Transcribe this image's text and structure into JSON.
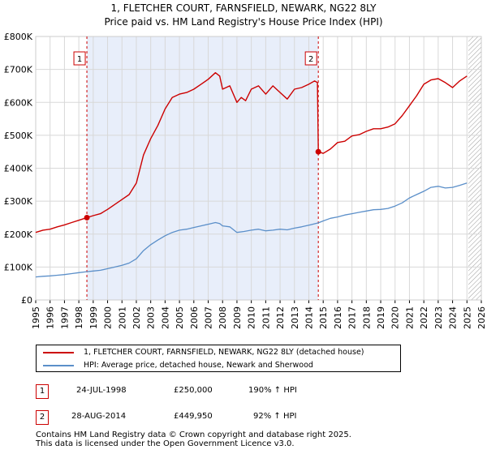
{
  "chart_data": {
    "type": "line",
    "title": "1, FLETCHER COURT, FARNSFIELD, NEWARK, NG22 8LY",
    "subtitle": "Price paid vs. HM Land Registry's House Price Index (HPI)",
    "xlabel": "",
    "ylabel": "",
    "xlim": [
      1995,
      2026
    ],
    "ylim": [
      0,
      800000
    ],
    "yticks": [
      0,
      100000,
      200000,
      300000,
      400000,
      500000,
      600000,
      700000,
      800000
    ],
    "ytick_labels": [
      "£0",
      "£100K",
      "£200K",
      "£300K",
      "£400K",
      "£500K",
      "£600K",
      "£700K",
      "£800K"
    ],
    "xticks": [
      1995,
      1996,
      1997,
      1998,
      1999,
      2000,
      2001,
      2002,
      2003,
      2004,
      2005,
      2006,
      2007,
      2008,
      2009,
      2010,
      2011,
      2012,
      2013,
      2014,
      2015,
      2016,
      2017,
      2018,
      2019,
      2020,
      2021,
      2022,
      2023,
      2024,
      2025,
      2026
    ],
    "xtick_labels": [
      "1995",
      "1996",
      "1997",
      "1998",
      "1999",
      "2000",
      "2001",
      "2002",
      "2003",
      "2004",
      "2005",
      "2006",
      "2007",
      "2008",
      "2009",
      "2010",
      "2011",
      "2012",
      "2013",
      "2014",
      "2015",
      "2016",
      "2017",
      "2018",
      "2019",
      "2020",
      "2021",
      "2022",
      "2023",
      "2024",
      "2025",
      "2026"
    ],
    "grid": true,
    "shaded_region": [
      1998.56,
      2014.66
    ],
    "future_hatch_from": 2025.1,
    "series": [
      {
        "name": "1, FLETCHER COURT, FARNSFIELD, NEWARK, NG22 8LY (detached house)",
        "color": "#cc0000",
        "x": [
          1995.0,
          1995.5,
          1996.0,
          1996.5,
          1997.0,
          1997.5,
          1998.0,
          1998.56,
          1999.0,
          1999.5,
          2000.0,
          2000.5,
          2001.0,
          2001.5,
          2002.0,
          2002.5,
          2003.0,
          2003.5,
          2004.0,
          2004.5,
          2005.0,
          2005.5,
          2006.0,
          2006.5,
          2007.0,
          2007.5,
          2007.8,
          2008.0,
          2008.5,
          2009.0,
          2009.3,
          2009.6,
          2010.0,
          2010.5,
          2011.0,
          2011.5,
          2012.0,
          2012.5,
          2013.0,
          2013.5,
          2014.0,
          2014.4,
          2014.6,
          2014.66,
          2015.0,
          2015.5,
          2016.0,
          2016.5,
          2017.0,
          2017.5,
          2018.0,
          2018.5,
          2019.0,
          2019.5,
          2020.0,
          2020.5,
          2021.0,
          2021.5,
          2022.0,
          2022.5,
          2023.0,
          2023.5,
          2024.0,
          2024.5,
          2025.0
        ],
        "values": [
          205000,
          212000,
          215000,
          222000,
          228000,
          235000,
          242000,
          250000,
          256000,
          262000,
          275000,
          290000,
          305000,
          320000,
          355000,
          440000,
          490000,
          530000,
          580000,
          615000,
          625000,
          630000,
          640000,
          655000,
          670000,
          690000,
          680000,
          640000,
          650000,
          600000,
          615000,
          605000,
          640000,
          650000,
          625000,
          650000,
          630000,
          610000,
          640000,
          645000,
          655000,
          665000,
          660000,
          449950,
          445000,
          458000,
          478000,
          482000,
          498000,
          502000,
          512000,
          520000,
          520000,
          525000,
          535000,
          560000,
          590000,
          620000,
          655000,
          668000,
          672000,
          660000,
          645000,
          665000,
          680000
        ]
      },
      {
        "name": "HPI: Average price, detached house, Newark and Sherwood",
        "color": "#5b8fc9",
        "x": [
          1995.0,
          1995.5,
          1996.0,
          1996.5,
          1997.0,
          1997.5,
          1998.0,
          1998.56,
          1999.0,
          1999.5,
          2000.0,
          2000.5,
          2001.0,
          2001.5,
          2002.0,
          2002.5,
          2003.0,
          2003.5,
          2004.0,
          2004.5,
          2005.0,
          2005.5,
          2006.0,
          2006.5,
          2007.0,
          2007.5,
          2007.8,
          2008.0,
          2008.5,
          2009.0,
          2009.5,
          2010.0,
          2010.5,
          2011.0,
          2011.5,
          2012.0,
          2012.5,
          2013.0,
          2013.5,
          2014.0,
          2014.66,
          2015.0,
          2015.5,
          2016.0,
          2016.5,
          2017.0,
          2017.5,
          2018.0,
          2018.5,
          2019.0,
          2019.5,
          2020.0,
          2020.5,
          2021.0,
          2021.5,
          2022.0,
          2022.5,
          2023.0,
          2023.5,
          2024.0,
          2024.5,
          2025.0
        ],
        "values": [
          70000,
          72000,
          73000,
          75000,
          77000,
          80000,
          83000,
          86000,
          88000,
          90000,
          95000,
          100000,
          105000,
          112000,
          125000,
          150000,
          168000,
          182000,
          195000,
          205000,
          212000,
          215000,
          220000,
          225000,
          230000,
          235000,
          232000,
          225000,
          222000,
          205000,
          208000,
          212000,
          215000,
          210000,
          212000,
          215000,
          213000,
          218000,
          222000,
          227000,
          234000,
          240000,
          248000,
          252000,
          258000,
          262000,
          266000,
          270000,
          274000,
          275000,
          278000,
          285000,
          295000,
          310000,
          320000,
          330000,
          342000,
          345000,
          340000,
          342000,
          348000,
          355000
        ]
      }
    ],
    "annotations": [
      {
        "label": "1",
        "x": 1998.56,
        "y": 250000
      },
      {
        "label": "2",
        "x": 2014.66,
        "y": 449950
      }
    ]
  },
  "legend": {
    "items": [
      {
        "label": "1, FLETCHER COURT, FARNSFIELD, NEWARK, NG22 8LY (detached house)",
        "color": "#cc0000"
      },
      {
        "label": "HPI: Average price, detached house, Newark and Sherwood",
        "color": "#5b8fc9"
      }
    ]
  },
  "transactions": [
    {
      "label": "1",
      "date": "24-JUL-1998",
      "price": "£250,000",
      "hpi": "190% ↑ HPI"
    },
    {
      "label": "2",
      "date": "28-AUG-2014",
      "price": "£449,950",
      "hpi": "92% ↑ HPI"
    }
  ],
  "footer": {
    "line1": "Contains HM Land Registry data © Crown copyright and database right 2025.",
    "line2": "This data is licensed under the Open Government Licence v3.0."
  }
}
